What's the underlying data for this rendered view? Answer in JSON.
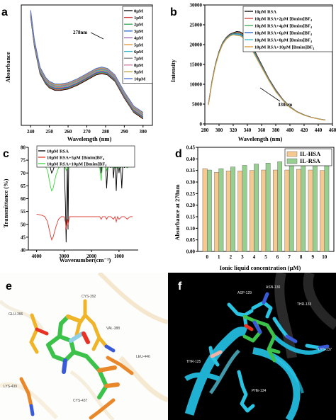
{
  "panels": {
    "a": "a",
    "b": "b",
    "c": "c",
    "d": "d",
    "e": "e",
    "f": "f"
  },
  "colors": {
    "series": [
      "#000000",
      "#d03a36",
      "#34a853",
      "#1f60c9",
      "#9b59b6",
      "#e09530",
      "#38b6c9",
      "#7f7f7f",
      "#c97aa0",
      "#b5a23a",
      "#4c6fd8"
    ]
  },
  "chart_data": [
    {
      "panel": "a",
      "type": "line",
      "xlabel": "Wavelength (nm)",
      "ylabel": "Absorbance",
      "xlim": [
        235,
        305
      ],
      "xticks": [
        240,
        250,
        260,
        270,
        280,
        290,
        300
      ],
      "annotation": "278nm",
      "legend_position": "top-right",
      "x": [
        240,
        242,
        245,
        248,
        250,
        253,
        256,
        260,
        265,
        270,
        275,
        278,
        281,
        285,
        290,
        295,
        300
      ],
      "series": [
        {
          "name": "0μM",
          "values": [
            0.99,
            0.76,
            0.55,
            0.47,
            0.44,
            0.42,
            0.42,
            0.43,
            0.46,
            0.5,
            0.54,
            0.55,
            0.54,
            0.49,
            0.36,
            0.25,
            0.2
          ]
        },
        {
          "name": "1μM",
          "values": [
            0.995,
            0.765,
            0.555,
            0.475,
            0.445,
            0.425,
            0.425,
            0.435,
            0.465,
            0.505,
            0.545,
            0.555,
            0.545,
            0.495,
            0.365,
            0.255,
            0.205
          ]
        },
        {
          "name": "2μM",
          "values": [
            1.0,
            0.77,
            0.56,
            0.48,
            0.45,
            0.43,
            0.43,
            0.44,
            0.47,
            0.51,
            0.55,
            0.56,
            0.55,
            0.5,
            0.37,
            0.26,
            0.21
          ]
        },
        {
          "name": "3μM",
          "values": [
            1.005,
            0.775,
            0.565,
            0.485,
            0.455,
            0.435,
            0.435,
            0.445,
            0.475,
            0.515,
            0.555,
            0.565,
            0.555,
            0.505,
            0.375,
            0.265,
            0.215
          ]
        },
        {
          "name": "4μM",
          "values": [
            1.01,
            0.78,
            0.57,
            0.49,
            0.46,
            0.44,
            0.44,
            0.45,
            0.48,
            0.52,
            0.56,
            0.57,
            0.56,
            0.51,
            0.38,
            0.27,
            0.22
          ]
        },
        {
          "name": "5μM",
          "values": [
            1.015,
            0.785,
            0.575,
            0.495,
            0.465,
            0.445,
            0.445,
            0.455,
            0.485,
            0.525,
            0.565,
            0.575,
            0.565,
            0.515,
            0.385,
            0.275,
            0.225
          ]
        },
        {
          "name": "6μM",
          "values": [
            1.02,
            0.79,
            0.58,
            0.5,
            0.47,
            0.45,
            0.45,
            0.46,
            0.49,
            0.53,
            0.57,
            0.58,
            0.57,
            0.52,
            0.39,
            0.28,
            0.23
          ]
        },
        {
          "name": "7μM",
          "values": [
            1.025,
            0.795,
            0.585,
            0.505,
            0.475,
            0.455,
            0.455,
            0.465,
            0.495,
            0.535,
            0.575,
            0.585,
            0.575,
            0.525,
            0.395,
            0.285,
            0.235
          ]
        },
        {
          "name": "8μM",
          "values": [
            1.03,
            0.8,
            0.59,
            0.51,
            0.48,
            0.46,
            0.46,
            0.47,
            0.5,
            0.54,
            0.58,
            0.59,
            0.58,
            0.53,
            0.4,
            0.29,
            0.24
          ]
        },
        {
          "name": "9μM",
          "values": [
            1.035,
            0.805,
            0.595,
            0.515,
            0.485,
            0.465,
            0.465,
            0.475,
            0.505,
            0.545,
            0.585,
            0.595,
            0.585,
            0.535,
            0.405,
            0.295,
            0.245
          ]
        },
        {
          "name": "10μM",
          "values": [
            1.04,
            0.81,
            0.6,
            0.52,
            0.49,
            0.47,
            0.47,
            0.48,
            0.51,
            0.55,
            0.59,
            0.6,
            0.59,
            0.54,
            0.41,
            0.3,
            0.25
          ]
        }
      ]
    },
    {
      "panel": "b",
      "type": "line",
      "xlabel": "Wavelength (nm)",
      "ylabel": "Intensity",
      "xlim": [
        280,
        460
      ],
      "ylim": [
        0,
        30000
      ],
      "xticks": [
        280,
        300,
        320,
        340,
        360,
        380,
        400,
        420,
        440,
        460
      ],
      "yticks": [
        0,
        5000,
        10000,
        15000,
        20000,
        25000,
        30000
      ],
      "annotation": "330nm",
      "legend_position": "top-right",
      "x": [
        285,
        290,
        295,
        300,
        305,
        310,
        315,
        320,
        325,
        330,
        335,
        340,
        345,
        350,
        360,
        370,
        380,
        390,
        400,
        410,
        420,
        430,
        440,
        450
      ],
      "series": [
        {
          "name": "10μM RSA",
          "values": [
            5000,
            10800,
            15200,
            18300,
            20500,
            21800,
            22600,
            23000,
            23300,
            23200,
            22600,
            21500,
            20100,
            18500,
            15000,
            11500,
            8600,
            6200,
            4400,
            3100,
            2300,
            1700,
            1300,
            1000
          ]
        },
        {
          "name": "10μM RSA+2μM [Bmim]BF₄",
          "values": [
            4950,
            10700,
            15100,
            18200,
            20400,
            21700,
            22500,
            22900,
            23100,
            23000,
            22400,
            21300,
            19900,
            18300,
            14850,
            11400,
            8500,
            6150,
            4350,
            3080,
            2280,
            1690,
            1290,
            990
          ]
        },
        {
          "name": "10μM RSA+4μM [Bmim]BF₄",
          "values": [
            4900,
            10600,
            15000,
            18100,
            20300,
            21600,
            22400,
            22800,
            22900,
            22800,
            22200,
            21100,
            19700,
            18100,
            14700,
            11300,
            8400,
            6100,
            4300,
            3060,
            2260,
            1680,
            1280,
            980
          ]
        },
        {
          "name": "10μM RSA+6μM [Bmim]BF₄",
          "values": [
            4850,
            10500,
            14900,
            18000,
            20200,
            21500,
            22300,
            22700,
            22700,
            22600,
            22000,
            20900,
            19500,
            17900,
            14550,
            11200,
            8300,
            6050,
            4250,
            3040,
            2240,
            1670,
            1270,
            970
          ]
        },
        {
          "name": "10μM RSA+8μM [Bmim]BF₄",
          "values": [
            4800,
            10400,
            14800,
            17900,
            20100,
            21400,
            22200,
            22600,
            22500,
            22400,
            21800,
            20700,
            19300,
            17700,
            14400,
            11100,
            8200,
            6000,
            4200,
            3020,
            2220,
            1660,
            1260,
            960
          ]
        },
        {
          "name": "10μM RSA+10μM [Bmim]BF₄",
          "values": [
            4750,
            10300,
            14700,
            17800,
            20000,
            21300,
            22100,
            22500,
            22300,
            22200,
            21600,
            20500,
            19100,
            17500,
            14250,
            11000,
            8100,
            5950,
            4150,
            3000,
            2200,
            1650,
            1250,
            950
          ]
        }
      ]
    },
    {
      "panel": "c",
      "type": "line",
      "xlabel": "Wavenumber(cm⁻¹)",
      "ylabel": "Transmittance (%)",
      "xlim": [
        4300,
        300
      ],
      "ylim": [
        40,
        80
      ],
      "xticks": [
        4000,
        3000,
        2000,
        1000
      ],
      "yticks": [
        40,
        45,
        50,
        55,
        60,
        65,
        70,
        75,
        80
      ],
      "legend_position": "top",
      "series": [
        {
          "name": "10μM RSA",
          "x": [
            4000,
            3800,
            3700,
            3600,
            3500,
            3450,
            3400,
            3300,
            3200,
            3100,
            3000,
            2950,
            2925,
            2900,
            2880,
            2855,
            2830,
            2700,
            2400,
            2000,
            1800,
            1700,
            1650,
            1600,
            1550,
            1500,
            1450,
            1400,
            1350,
            1300,
            1250,
            1200,
            1150,
            1100,
            1050,
            1000,
            950,
            900,
            850,
            800,
            750,
            700,
            600,
            500
          ],
          "values": [
            79,
            78.5,
            78,
            76,
            72,
            70,
            71,
            75,
            77.5,
            78,
            74,
            58,
            43,
            60,
            75,
            48,
            76,
            78.5,
            78.5,
            78.5,
            78,
            76,
            70,
            77,
            74,
            77,
            64,
            74,
            78,
            72,
            77,
            68,
            76,
            63,
            76,
            70,
            75,
            64,
            76,
            72,
            78,
            75,
            79,
            76
          ]
        },
        {
          "name": "10μM RSA+5μM [Bmim]BF₄",
          "x": [
            4000,
            3800,
            3700,
            3600,
            3500,
            3450,
            3400,
            3300,
            3200,
            3100,
            3000,
            2950,
            2920,
            2880,
            2855,
            2800,
            2600,
            2400,
            2000,
            1800,
            1700,
            1650,
            1600,
            1500,
            1450,
            1400,
            1300,
            1200,
            1150,
            1100,
            1050,
            1000,
            900,
            800,
            700,
            600,
            500
          ],
          "values": [
            54,
            53.5,
            53,
            51,
            46,
            44,
            45,
            49,
            52,
            53,
            53,
            51,
            48,
            52,
            50,
            53,
            53,
            53,
            53,
            53,
            53,
            52,
            53,
            53,
            52,
            53,
            53,
            52,
            53,
            51,
            53,
            52,
            53,
            53,
            52,
            53,
            53
          ]
        },
        {
          "name": "10μM RSA+10μM [Bmim]BF₄",
          "x": [
            4000,
            3800,
            3700,
            3600,
            3500,
            3450,
            3400,
            3300,
            3200,
            3100,
            3000,
            2950,
            2920,
            2880,
            2855,
            2800,
            2600,
            2400,
            2000,
            1800,
            1700,
            1650,
            1600,
            1500,
            1450,
            1400,
            1300,
            1200,
            1150,
            1100,
            1050,
            1000,
            900,
            800,
            700,
            600,
            500
          ],
          "values": [
            74,
            73.5,
            73,
            71,
            65,
            63,
            64,
            69,
            72,
            73,
            73,
            72,
            71,
            72,
            72,
            73,
            73,
            73,
            73,
            73,
            72,
            67,
            73,
            73,
            71,
            73,
            73,
            72,
            73,
            72,
            73,
            72,
            73,
            73,
            72,
            73,
            73
          ]
        }
      ]
    },
    {
      "panel": "d",
      "type": "bar",
      "xlabel": "Ionic liquid concentration (μM)",
      "ylabel": "Absorbance at 278nm",
      "ylim": [
        0,
        0.45
      ],
      "yticks": [
        0,
        0.05,
        0.1,
        0.15,
        0.2,
        0.25,
        0.3,
        0.35,
        0.4,
        0.45
      ],
      "ytick_labels": [
        "0.00",
        "0.05",
        "0.10",
        "0.15",
        "0.20",
        "0.25",
        "0.30",
        "0.35",
        "0.40",
        "0.45"
      ],
      "legend_position": "top-right",
      "categories": [
        "0",
        "1",
        "2",
        "3",
        "4",
        "5",
        "6",
        "7",
        "8",
        "9",
        "10"
      ],
      "series": [
        {
          "name": "IL-HSA",
          "color": "#f6c990",
          "values": [
            0.358,
            0.342,
            0.348,
            0.348,
            0.35,
            0.352,
            0.352,
            0.352,
            0.355,
            0.352,
            0.35
          ]
        },
        {
          "name": "IL-RSA",
          "color": "#96cf8f",
          "values": [
            0.352,
            0.358,
            0.365,
            0.372,
            0.378,
            0.382,
            0.388,
            0.391,
            0.393,
            0.395,
            0.398
          ]
        }
      ]
    }
  ],
  "panel_e": {
    "labels": [
      "CYS-392",
      "GLU-396",
      "VAL-388",
      "LEU-446",
      "LYS-439",
      "CYS-437"
    ]
  },
  "panel_f": {
    "labels": [
      "ASN-130",
      "ASP-129",
      "THR-133",
      "LYS-137",
      "THR-125",
      "PHE-134"
    ]
  }
}
